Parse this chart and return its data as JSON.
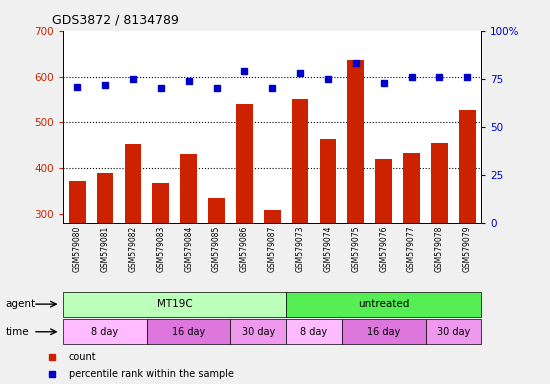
{
  "title": "GDS3872 / 8134789",
  "samples": [
    "GSM579080",
    "GSM579081",
    "GSM579082",
    "GSM579083",
    "GSM579084",
    "GSM579085",
    "GSM579086",
    "GSM579087",
    "GSM579073",
    "GSM579074",
    "GSM579075",
    "GSM579076",
    "GSM579077",
    "GSM579078",
    "GSM579079"
  ],
  "count_values": [
    373,
    390,
    452,
    367,
    430,
    335,
    540,
    308,
    550,
    463,
    635,
    420,
    433,
    455,
    527
  ],
  "percentile_values": [
    71,
    72,
    75,
    70,
    74,
    70,
    79,
    70,
    78,
    75,
    83,
    73,
    76,
    76,
    76
  ],
  "ylim_left": [
    280,
    700
  ],
  "ylim_right": [
    0,
    100
  ],
  "yticks_left": [
    300,
    400,
    500,
    600,
    700
  ],
  "yticks_right": [
    0,
    25,
    50,
    75,
    100
  ],
  "bar_color": "#cc2200",
  "dot_color": "#0000cc",
  "bg_color": "#f0f0f0",
  "plot_bg": "#ffffff",
  "agent_row": [
    {
      "label": "MT19C",
      "start": 0,
      "end": 8,
      "color": "#bbffbb"
    },
    {
      "label": "untreated",
      "start": 8,
      "end": 15,
      "color": "#55ee55"
    }
  ],
  "time_row": [
    {
      "label": "8 day",
      "start": 0,
      "end": 3,
      "color": "#ffbbff"
    },
    {
      "label": "16 day",
      "start": 3,
      "end": 6,
      "color": "#dd77dd"
    },
    {
      "label": "30 day",
      "start": 6,
      "end": 8,
      "color": "#ee99ee"
    },
    {
      "label": "8 day",
      "start": 8,
      "end": 10,
      "color": "#ffbbff"
    },
    {
      "label": "16 day",
      "start": 10,
      "end": 13,
      "color": "#dd77dd"
    },
    {
      "label": "30 day",
      "start": 13,
      "end": 15,
      "color": "#ee99ee"
    }
  ],
  "legend_items": [
    {
      "label": "count",
      "color": "#cc2200"
    },
    {
      "label": "percentile rank within the sample",
      "color": "#0000cc"
    }
  ],
  "left_tick_color": "#cc2200",
  "right_tick_color": "#0000cc"
}
